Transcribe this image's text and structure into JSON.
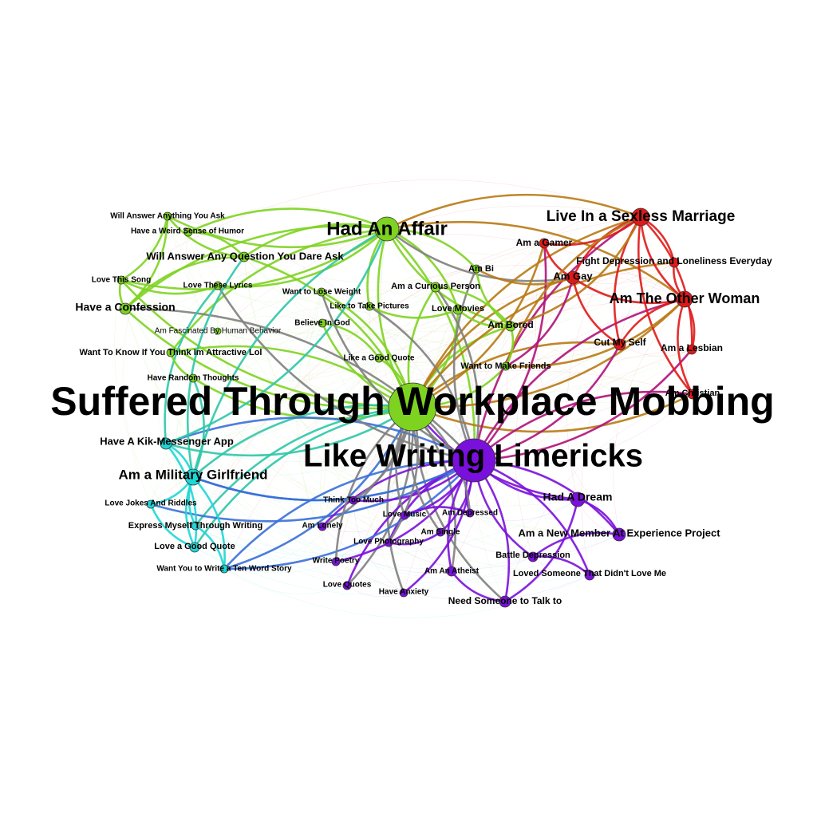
{
  "colors": {
    "green": "#7ed321",
    "red": "#e01818",
    "purple": "#7a10dc",
    "cyan": "#1ed6d6",
    "blue": "#3a6fd8",
    "brown": "#b87a14",
    "magenta": "#b0127a",
    "gray": "#7f7f7f",
    "teal": "#2ec7a8"
  },
  "nodes": [
    {
      "id": "workplace",
      "label": "Suffered Through Workplace Mobbing",
      "group": "green"
    },
    {
      "id": "limericks",
      "label": "Like Writing Limericks",
      "group": "purple"
    },
    {
      "id": "affair",
      "label": "Had An Affair",
      "group": "green"
    },
    {
      "id": "sexless",
      "label": "Live In a Sexless Marriage",
      "group": "red"
    },
    {
      "id": "otherwoman",
      "label": "Am The Other Woman",
      "group": "red"
    },
    {
      "id": "militarygf",
      "label": "Am a Military Girlfriend",
      "group": "cyan"
    },
    {
      "id": "kik",
      "label": "Have A Kik-Messenger App",
      "group": "cyan"
    },
    {
      "id": "confession",
      "label": "Have a Confession",
      "group": "green"
    },
    {
      "id": "answerdare",
      "label": "Will Answer Any Question You Dare Ask",
      "group": "green"
    },
    {
      "id": "answeranything",
      "label": "Will Answer Anything You Ask",
      "group": "green"
    },
    {
      "id": "weirdhumor",
      "label": "Have a Weird Sense of Humor",
      "group": "green"
    },
    {
      "id": "lovesong",
      "label": "Love This Song",
      "group": "green"
    },
    {
      "id": "lyrics",
      "label": "Love These Lyrics",
      "group": "green"
    },
    {
      "id": "loseweight",
      "label": "Want to Lose Weight",
      "group": "green"
    },
    {
      "id": "curious",
      "label": "Am a Curious Person",
      "group": "green"
    },
    {
      "id": "ambi",
      "label": "Am Bi",
      "group": "green"
    },
    {
      "id": "pictures",
      "label": "Like to Take Pictures",
      "group": "green"
    },
    {
      "id": "movies",
      "label": "Love Movies",
      "group": "green"
    },
    {
      "id": "fascinated",
      "label": "Am Fascinated By Human Behavior",
      "group": "green",
      "thin": true
    },
    {
      "id": "believegod",
      "label": "Believe In God",
      "group": "green"
    },
    {
      "id": "attractive",
      "label": "Want To Know If You Think Im Attractive Lol",
      "group": "green"
    },
    {
      "id": "goodquote",
      "label": "Like a Good Quote",
      "group": "green"
    },
    {
      "id": "bored",
      "label": "Am Bored",
      "group": "green"
    },
    {
      "id": "friends",
      "label": "Want to Make Friends",
      "group": "green"
    },
    {
      "id": "randomthoughts",
      "label": "Have Random Thoughts",
      "group": "green"
    },
    {
      "id": "gamer",
      "label": "Am a Gamer",
      "group": "red"
    },
    {
      "id": "gay",
      "label": "Am Gay",
      "group": "red"
    },
    {
      "id": "fightdep",
      "label": "Fight Depression and Loneliness Everyday",
      "group": "red"
    },
    {
      "id": "cutself",
      "label": "Cut My Self",
      "group": "red"
    },
    {
      "id": "lesbian",
      "label": "Am a Lesbian",
      "group": "red"
    },
    {
      "id": "christian",
      "label": "Am Christian",
      "group": "red"
    },
    {
      "id": "jokes",
      "label": "Love Jokes And Riddles",
      "group": "cyan"
    },
    {
      "id": "expresswriting",
      "label": "Express Myself Through Writing",
      "group": "cyan"
    },
    {
      "id": "lovegoodquote",
      "label": "Love a Good Quote",
      "group": "cyan"
    },
    {
      "id": "tenword",
      "label": "Want You to Write a Ten Word Story",
      "group": "cyan"
    },
    {
      "id": "thinktoomuch",
      "label": "Think Too Much",
      "group": "purple"
    },
    {
      "id": "lonely",
      "label": "Am Lonely",
      "group": "purple"
    },
    {
      "id": "lovemusic",
      "label": "Love Music",
      "group": "purple"
    },
    {
      "id": "depressed",
      "label": "Am Depressed",
      "group": "purple"
    },
    {
      "id": "single",
      "label": "Am Single",
      "group": "purple"
    },
    {
      "id": "photography",
      "label": "Love Photography",
      "group": "purple"
    },
    {
      "id": "poetry",
      "label": "Write Poetry",
      "group": "purple"
    },
    {
      "id": "quotes",
      "label": "Love Quotes",
      "group": "purple"
    },
    {
      "id": "anxiety",
      "label": "Have Anxiety",
      "group": "purple"
    },
    {
      "id": "atheist",
      "label": "Am An Atheist",
      "group": "purple"
    },
    {
      "id": "talkto",
      "label": "Need Someone to Talk to",
      "group": "purple"
    },
    {
      "id": "dream",
      "label": "Had A Dream",
      "group": "purple"
    },
    {
      "id": "newmember",
      "label": "Am a New Member At Experience Project",
      "group": "purple"
    },
    {
      "id": "battledep",
      "label": "Battle Depression",
      "group": "purple"
    },
    {
      "id": "lovedsomeone",
      "label": "Loved Someone That Didn't Love Me",
      "group": "purple"
    }
  ],
  "edges": [
    {
      "s": "affair",
      "t": "workplace",
      "c": "green"
    },
    {
      "s": "affair",
      "t": "limericks",
      "c": "green"
    },
    {
      "s": "affair",
      "t": "answerdare",
      "c": "green"
    },
    {
      "s": "affair",
      "t": "answeranything",
      "c": "green"
    },
    {
      "s": "affair",
      "t": "weirdhumor",
      "c": "green"
    },
    {
      "s": "affair",
      "t": "lovesong",
      "c": "green"
    },
    {
      "s": "affair",
      "t": "confession",
      "c": "green"
    },
    {
      "s": "affair",
      "t": "lyrics",
      "c": "green"
    },
    {
      "s": "affair",
      "t": "pictures",
      "c": "green"
    },
    {
      "s": "affair",
      "t": "movies",
      "c": "green"
    },
    {
      "s": "affair",
      "t": "bored",
      "c": "green"
    },
    {
      "s": "affair",
      "t": "ambi",
      "c": "green"
    },
    {
      "s": "affair",
      "t": "attractive",
      "c": "green"
    },
    {
      "s": "affair",
      "t": "sexless",
      "c": "brown"
    },
    {
      "s": "affair",
      "t": "gay",
      "c": "gray"
    },
    {
      "s": "affair",
      "t": "otherwoman",
      "c": "brown"
    },
    {
      "s": "workplace",
      "t": "limericks",
      "c": "gray"
    },
    {
      "s": "workplace",
      "t": "confession",
      "c": "green"
    },
    {
      "s": "workplace",
      "t": "answerdare",
      "c": "green"
    },
    {
      "s": "workplace",
      "t": "lovesong",
      "c": "green"
    },
    {
      "s": "workplace",
      "t": "attractive",
      "c": "green"
    },
    {
      "s": "workplace",
      "t": "randomthoughts",
      "c": "green"
    },
    {
      "s": "workplace",
      "t": "goodquote",
      "c": "green"
    },
    {
      "s": "workplace",
      "t": "believegod",
      "c": "green"
    },
    {
      "s": "workplace",
      "t": "loseweight",
      "c": "green"
    },
    {
      "s": "workplace",
      "t": "curious",
      "c": "green"
    },
    {
      "s": "workplace",
      "t": "friends",
      "c": "green"
    },
    {
      "s": "workplace",
      "t": "bored",
      "c": "green"
    },
    {
      "s": "workplace",
      "t": "movies",
      "c": "green"
    },
    {
      "s": "workplace",
      "t": "sexless",
      "c": "brown"
    },
    {
      "s": "workplace",
      "t": "gamer",
      "c": "brown"
    },
    {
      "s": "workplace",
      "t": "gay",
      "c": "brown"
    },
    {
      "s": "workplace",
      "t": "otherwoman",
      "c": "brown"
    },
    {
      "s": "workplace",
      "t": "cutself",
      "c": "brown"
    },
    {
      "s": "workplace",
      "t": "christian",
      "c": "brown"
    },
    {
      "s": "workplace",
      "t": "fightdep",
      "c": "brown"
    },
    {
      "s": "workplace",
      "t": "militarygf",
      "c": "teal"
    },
    {
      "s": "workplace",
      "t": "kik",
      "c": "teal"
    },
    {
      "s": "workplace",
      "t": "expresswriting",
      "c": "teal"
    },
    {
      "s": "workplace",
      "t": "tenword",
      "c": "blue"
    },
    {
      "s": "workplace",
      "t": "lovegoodquote",
      "c": "teal"
    },
    {
      "s": "workplace",
      "t": "lonely",
      "c": "gray"
    },
    {
      "s": "workplace",
      "t": "anxiety",
      "c": "gray"
    },
    {
      "s": "workplace",
      "t": "quotes",
      "c": "gray"
    },
    {
      "s": "workplace",
      "t": "talkto",
      "c": "gray"
    },
    {
      "s": "workplace",
      "t": "atheist",
      "c": "gray"
    },
    {
      "s": "workplace",
      "t": "dream",
      "c": "purple"
    },
    {
      "s": "limericks",
      "t": "sexless",
      "c": "magenta"
    },
    {
      "s": "limericks",
      "t": "gamer",
      "c": "magenta"
    },
    {
      "s": "limericks",
      "t": "otherwoman",
      "c": "magenta"
    },
    {
      "s": "limericks",
      "t": "lesbian",
      "c": "magenta"
    },
    {
      "s": "limericks",
      "t": "christian",
      "c": "magenta"
    },
    {
      "s": "limericks",
      "t": "cutself",
      "c": "magenta"
    },
    {
      "s": "limericks",
      "t": "militarygf",
      "c": "blue"
    },
    {
      "s": "limericks",
      "t": "kik",
      "c": "blue"
    },
    {
      "s": "limericks",
      "t": "jokes",
      "c": "blue"
    },
    {
      "s": "limericks",
      "t": "tenword",
      "c": "blue"
    },
    {
      "s": "limericks",
      "t": "thinktoomuch",
      "c": "purple"
    },
    {
      "s": "limericks",
      "t": "lonely",
      "c": "purple"
    },
    {
      "s": "limericks",
      "t": "lovemusic",
      "c": "purple"
    },
    {
      "s": "limericks",
      "t": "depressed",
      "c": "purple"
    },
    {
      "s": "limericks",
      "t": "single",
      "c": "purple"
    },
    {
      "s": "limericks",
      "t": "photography",
      "c": "purple"
    },
    {
      "s": "limericks",
      "t": "poetry",
      "c": "purple"
    },
    {
      "s": "limericks",
      "t": "quotes",
      "c": "purple"
    },
    {
      "s": "limericks",
      "t": "anxiety",
      "c": "purple"
    },
    {
      "s": "limericks",
      "t": "atheist",
      "c": "purple"
    },
    {
      "s": "limericks",
      "t": "talkto",
      "c": "purple"
    },
    {
      "s": "limericks",
      "t": "dream",
      "c": "purple"
    },
    {
      "s": "limericks",
      "t": "newmember",
      "c": "purple"
    },
    {
      "s": "limericks",
      "t": "battledep",
      "c": "purple"
    },
    {
      "s": "limericks",
      "t": "lovedsomeone",
      "c": "purple"
    },
    {
      "s": "limericks",
      "t": "curious",
      "c": "gray"
    },
    {
      "s": "limericks",
      "t": "ambi",
      "c": "gray"
    },
    {
      "s": "limericks",
      "t": "confession",
      "c": "gray"
    },
    {
      "s": "limericks",
      "t": "lyrics",
      "c": "gray"
    },
    {
      "s": "sexless",
      "t": "otherwoman",
      "c": "red"
    },
    {
      "s": "sexless",
      "t": "gamer",
      "c": "red"
    },
    {
      "s": "sexless",
      "t": "gay",
      "c": "red"
    },
    {
      "s": "sexless",
      "t": "fightdep",
      "c": "red"
    },
    {
      "s": "sexless",
      "t": "cutself",
      "c": "red"
    },
    {
      "s": "sexless",
      "t": "lesbian",
      "c": "red"
    },
    {
      "s": "sexless",
      "t": "christian",
      "c": "red"
    },
    {
      "s": "otherwoman",
      "t": "gay",
      "c": "red"
    },
    {
      "s": "otherwoman",
      "t": "cutself",
      "c": "red"
    },
    {
      "s": "otherwoman",
      "t": "lesbian",
      "c": "red"
    },
    {
      "s": "otherwoman",
      "t": "christian",
      "c": "red"
    },
    {
      "s": "otherwoman",
      "t": "fightdep",
      "c": "red"
    },
    {
      "s": "gamer",
      "t": "gay",
      "c": "red"
    },
    {
      "s": "sexless",
      "t": "bored",
      "c": "brown"
    },
    {
      "s": "sexless",
      "t": "friends",
      "c": "brown"
    },
    {
      "s": "otherwoman",
      "t": "friends",
      "c": "brown"
    },
    {
      "s": "ambi",
      "t": "gay",
      "c": "brown"
    },
    {
      "s": "gay",
      "t": "friends",
      "c": "magenta"
    },
    {
      "s": "gay",
      "t": "cutself",
      "c": "red"
    },
    {
      "s": "militarygf",
      "t": "answerdare",
      "c": "teal"
    },
    {
      "s": "militarygf",
      "t": "expresswriting",
      "c": "cyan"
    },
    {
      "s": "militarygf",
      "t": "jokes",
      "c": "cyan"
    },
    {
      "s": "militarygf",
      "t": "lovegoodquote",
      "c": "cyan"
    },
    {
      "s": "militarygf",
      "t": "tenword",
      "c": "cyan"
    },
    {
      "s": "militarygf",
      "t": "kik",
      "c": "cyan"
    },
    {
      "s": "militarygf",
      "t": "affair",
      "c": "teal"
    },
    {
      "s": "militarygf",
      "t": "limericks",
      "c": "blue"
    },
    {
      "s": "kik",
      "t": "lovegoodquote",
      "c": "cyan"
    },
    {
      "s": "kik",
      "t": "affair",
      "c": "teal"
    },
    {
      "s": "kik",
      "t": "lyrics",
      "c": "teal"
    },
    {
      "s": "jokes",
      "t": "lovegoodquote",
      "c": "cyan"
    },
    {
      "s": "expresswriting",
      "t": "tenword",
      "c": "cyan"
    },
    {
      "s": "tenword",
      "t": "limericks",
      "c": "blue"
    },
    {
      "s": "confession",
      "t": "answerdare",
      "c": "green"
    },
    {
      "s": "confession",
      "t": "answeranything",
      "c": "green"
    },
    {
      "s": "confession",
      "t": "lovesong",
      "c": "green"
    },
    {
      "s": "lovesong",
      "t": "answeranything",
      "c": "green"
    },
    {
      "s": "weirdhumor",
      "t": "answerdare",
      "c": "green"
    },
    {
      "s": "answeranything",
      "t": "answerdare",
      "c": "green"
    },
    {
      "s": "lyrics",
      "t": "lovesong",
      "c": "green"
    },
    {
      "s": "attractive",
      "t": "randomthoughts",
      "c": "green"
    },
    {
      "s": "believegod",
      "t": "goodquote",
      "c": "green"
    },
    {
      "s": "pictures",
      "t": "movies",
      "c": "green"
    },
    {
      "s": "curious",
      "t": "bored",
      "c": "green"
    },
    {
      "s": "movies",
      "t": "bored",
      "c": "green"
    },
    {
      "s": "bored",
      "t": "friends",
      "c": "green"
    },
    {
      "s": "ambi",
      "t": "bored",
      "c": "green"
    },
    {
      "s": "randomthoughts",
      "t": "militarygf",
      "c": "teal"
    },
    {
      "s": "loseweight",
      "t": "limericks",
      "c": "gray"
    },
    {
      "s": "pictures",
      "t": "limericks",
      "c": "gray"
    },
    {
      "s": "thinktoomuch",
      "t": "workplace",
      "c": "gray"
    },
    {
      "s": "lovemusic",
      "t": "workplace",
      "c": "gray"
    },
    {
      "s": "photography",
      "t": "workplace",
      "c": "gray"
    },
    {
      "s": "poetry",
      "t": "workplace",
      "c": "gray"
    },
    {
      "s": "depressed",
      "t": "workplace",
      "c": "gray"
    },
    {
      "s": "single",
      "t": "workplace",
      "c": "gray"
    },
    {
      "s": "depressed",
      "t": "lovemusic",
      "c": "purple"
    },
    {
      "s": "single",
      "t": "photography",
      "c": "purple"
    },
    {
      "s": "atheist",
      "t": "talkto",
      "c": "purple"
    },
    {
      "s": "battledep",
      "t": "lovedsomeone",
      "c": "purple"
    },
    {
      "s": "newmember",
      "t": "dream",
      "c": "purple"
    },
    {
      "s": "dream",
      "t": "talkto",
      "c": "purple"
    },
    {
      "s": "newmember",
      "t": "battledep",
      "c": "purple"
    }
  ]
}
